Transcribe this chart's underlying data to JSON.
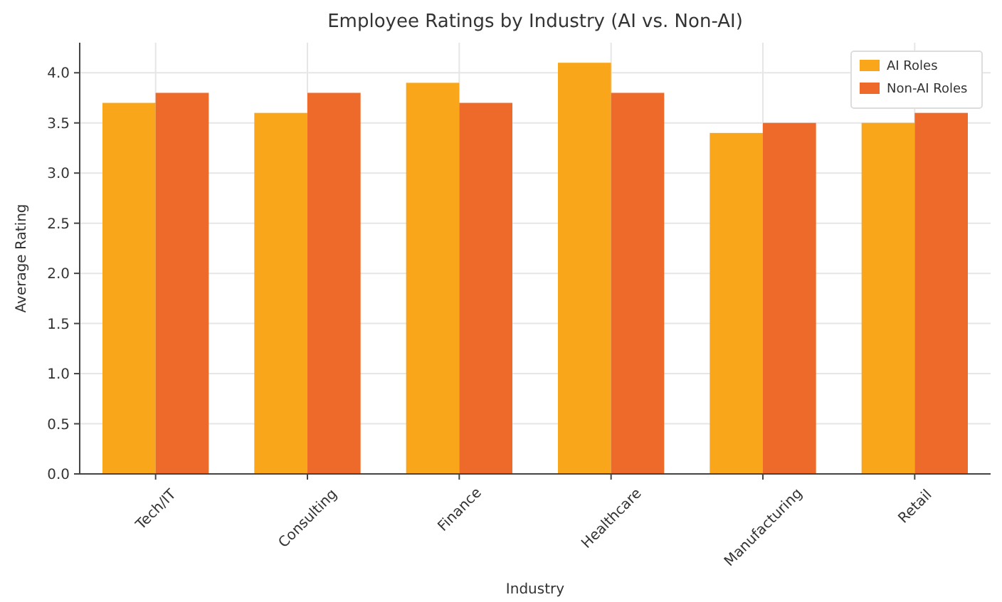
{
  "chart_data": {
    "type": "bar",
    "title": "Employee Ratings by Industry (AI vs. Non-AI)",
    "xlabel": "Industry",
    "ylabel": "Average Rating",
    "categories": [
      "Tech/IT",
      "Consulting",
      "Finance",
      "Healthcare",
      "Manufacturing",
      "Retail"
    ],
    "series": [
      {
        "name": "AI Roles",
        "color": "#f9a61a",
        "values": [
          3.7,
          3.6,
          3.9,
          4.1,
          3.4,
          3.5
        ]
      },
      {
        "name": "Non-AI Roles",
        "color": "#ee6a2b",
        "values": [
          3.8,
          3.8,
          3.7,
          3.8,
          3.5,
          3.6
        ]
      }
    ],
    "ylim": [
      0,
      4.3
    ],
    "yticks": [
      {
        "value": 0,
        "label": "0.0"
      },
      {
        "value": 0.5,
        "label": "0.5"
      },
      {
        "value": 1,
        "label": "1.0"
      },
      {
        "value": 1.5,
        "label": "1.5"
      },
      {
        "value": 2,
        "label": "2.0"
      },
      {
        "value": 2.5,
        "label": "2.5"
      },
      {
        "value": 3,
        "label": "3.0"
      },
      {
        "value": 3.5,
        "label": "3.5"
      },
      {
        "value": 4,
        "label": "4.0"
      }
    ],
    "grid": true,
    "legend": "top right"
  }
}
